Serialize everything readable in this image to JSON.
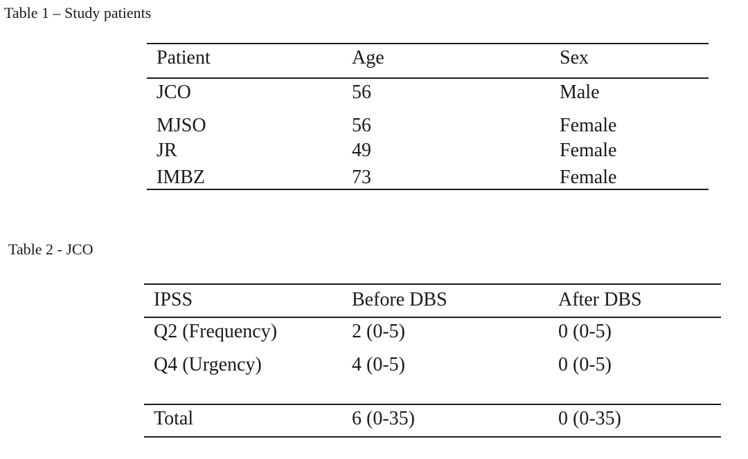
{
  "table1": {
    "caption": "Table 1 – Study patients",
    "headers": [
      "Patient",
      "Age",
      "Sex"
    ],
    "rows": [
      [
        "JCO",
        "56",
        "Male"
      ],
      [
        "MJSO",
        "56",
        "Female"
      ],
      [
        "JR",
        "49",
        "Female"
      ],
      [
        "IMBZ",
        "73",
        "Female"
      ]
    ]
  },
  "table2": {
    "caption": "Table 2 - JCO",
    "headers": [
      "IPSS",
      "Before DBS",
      "After DBS"
    ],
    "rows": [
      [
        "Q2 (Frequency)",
        "2 (0-5)",
        "0 (0-5)"
      ],
      [
        "Q4 (Urgency)",
        "4 (0-5)",
        "0 (0-5)"
      ]
    ],
    "total": [
      "Total",
      "6 (0-35)",
      "0 (0-35)"
    ]
  }
}
